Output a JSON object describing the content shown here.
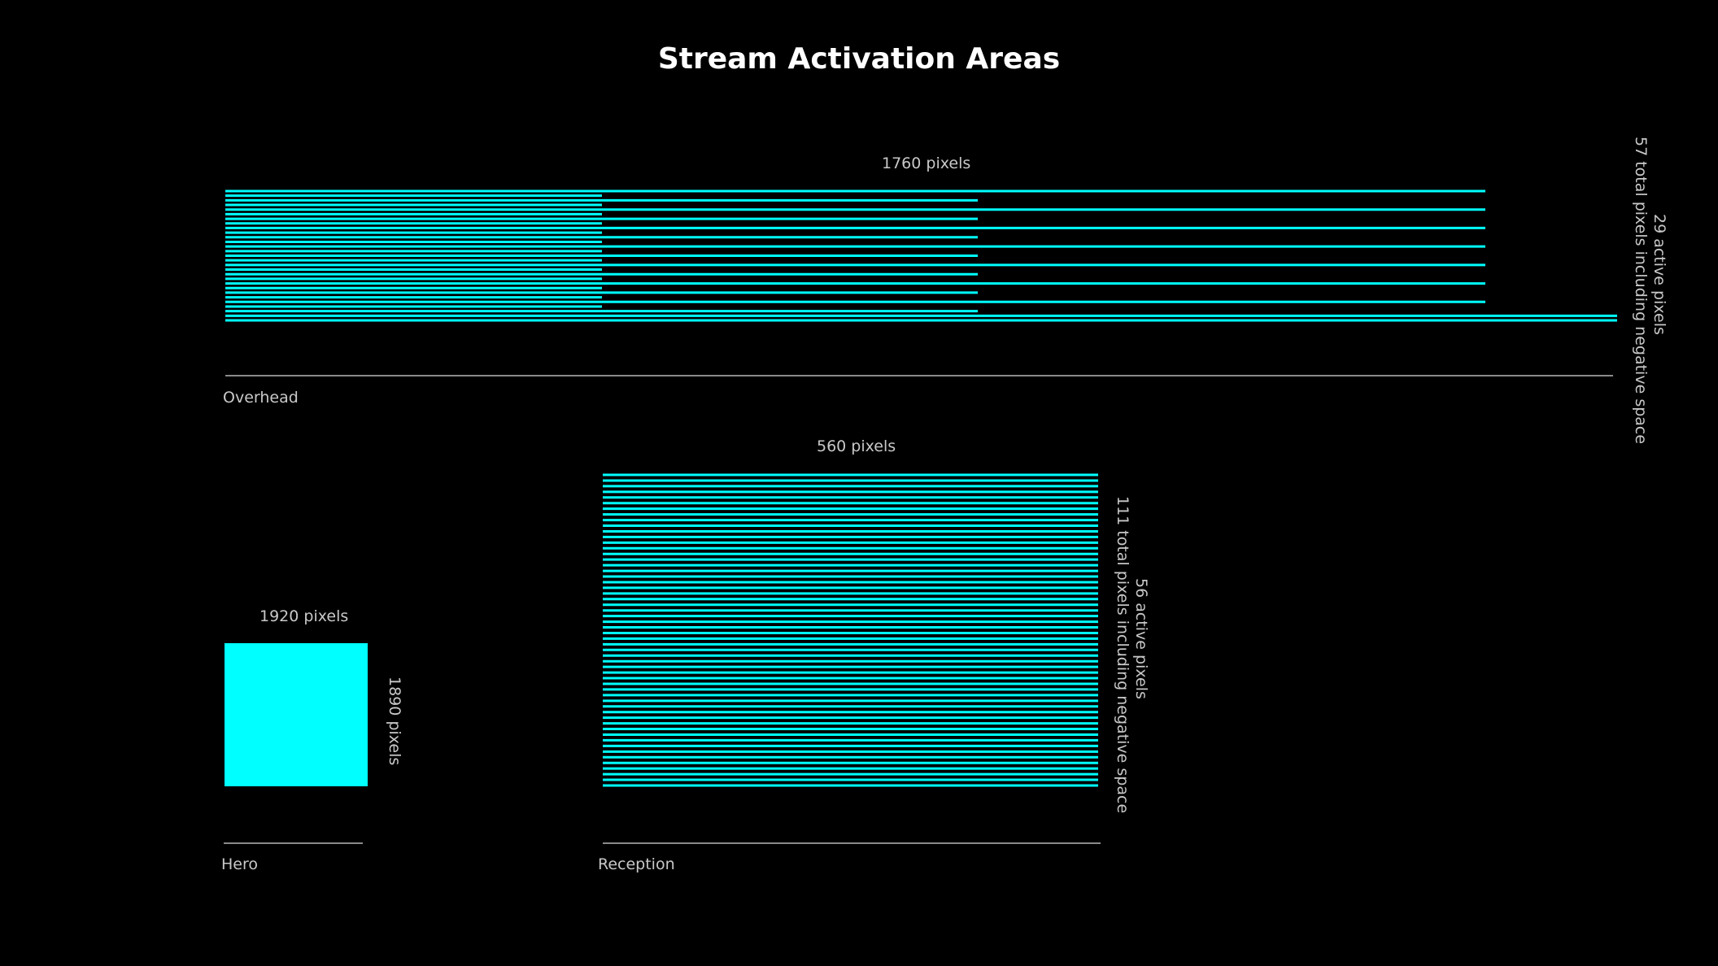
{
  "title": "Stream Activation Areas",
  "colors": {
    "active": "#00ffff",
    "baseline": "#8a8a8a",
    "text": "#c8c8c8",
    "background": "#000000"
  },
  "overhead": {
    "name": "Overhead",
    "width_label": "1760 pixels",
    "active_label": "29 active  pixels",
    "total_label": "57 total pixels including negative space"
  },
  "hero": {
    "name": "Hero",
    "width_label": "1920 pixels",
    "height_label": "1890 pixels"
  },
  "reception": {
    "name": "Reception",
    "width_label": "560 pixels",
    "active_label": "56 active  pixels",
    "total_label": "111 total pixels including negative space"
  }
}
